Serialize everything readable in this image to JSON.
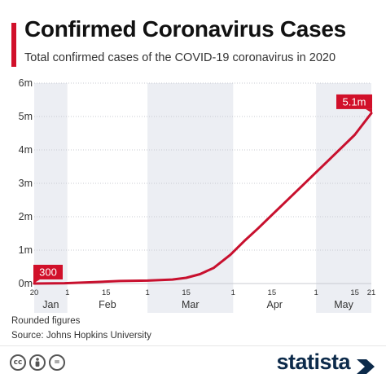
{
  "header": {
    "title": "Confirmed Coronavirus Cases",
    "subtitle": "Total confirmed cases of the COVID-19 coronavirus in 2020"
  },
  "colors": {
    "accent": "#d1102a",
    "line": "#c8102e",
    "band": "#eceef3",
    "text": "#333333",
    "brand": "#0c2a4a"
  },
  "chart_data": {
    "type": "line",
    "title": "Confirmed Coronavirus Cases",
    "subtitle": "Total confirmed cases of the COVID-19 coronavirus in 2020",
    "xlabel": "",
    "ylabel": "",
    "x_range": [
      "2020-01-20",
      "2020-05-21"
    ],
    "ylim": [
      0,
      6000000
    ],
    "y_ticks": [
      {
        "value": 0,
        "label": "0m"
      },
      {
        "value": 1000000,
        "label": "1m"
      },
      {
        "value": 2000000,
        "label": "2m"
      },
      {
        "value": 3000000,
        "label": "3m"
      },
      {
        "value": 4000000,
        "label": "4m"
      },
      {
        "value": 5000000,
        "label": "5m"
      },
      {
        "value": 6000000,
        "label": "6m"
      }
    ],
    "x_ticks": [
      {
        "date": "2020-01-20",
        "label": "20"
      },
      {
        "date": "2020-02-01",
        "label": "1"
      },
      {
        "date": "2020-02-15",
        "label": "15"
      },
      {
        "date": "2020-03-01",
        "label": "1"
      },
      {
        "date": "2020-03-15",
        "label": "15"
      },
      {
        "date": "2020-04-01",
        "label": "1"
      },
      {
        "date": "2020-04-15",
        "label": "15"
      },
      {
        "date": "2020-05-01",
        "label": "1"
      },
      {
        "date": "2020-05-15",
        "label": "15"
      },
      {
        "date": "2020-05-21",
        "label": "21"
      }
    ],
    "months": [
      {
        "label": "Jan",
        "start": "2020-01-20",
        "end": "2020-02-01",
        "shaded": true
      },
      {
        "label": "Feb",
        "start": "2020-02-01",
        "end": "2020-03-01",
        "shaded": false
      },
      {
        "label": "Mar",
        "start": "2020-03-01",
        "end": "2020-04-01",
        "shaded": true
      },
      {
        "label": "Apr",
        "start": "2020-04-01",
        "end": "2020-05-01",
        "shaded": false
      },
      {
        "label": "May",
        "start": "2020-05-01",
        "end": "2020-05-21",
        "shaded": true
      }
    ],
    "grid": true,
    "series": [
      {
        "points": [
          [
            "2020-01-20",
            300
          ],
          [
            "2020-01-31",
            10000
          ],
          [
            "2020-02-10",
            40000
          ],
          [
            "2020-02-20",
            76000
          ],
          [
            "2020-03-01",
            88000
          ],
          [
            "2020-03-10",
            120000
          ],
          [
            "2020-03-15",
            170000
          ],
          [
            "2020-03-20",
            280000
          ],
          [
            "2020-03-25",
            470000
          ],
          [
            "2020-03-31",
            860000
          ],
          [
            "2020-04-05",
            1270000
          ],
          [
            "2020-04-10",
            1650000
          ],
          [
            "2020-04-15",
            2050000
          ],
          [
            "2020-04-20",
            2450000
          ],
          [
            "2020-04-25",
            2850000
          ],
          [
            "2020-04-30",
            3250000
          ],
          [
            "2020-05-05",
            3650000
          ],
          [
            "2020-05-10",
            4050000
          ],
          [
            "2020-05-15",
            4450000
          ],
          [
            "2020-05-21",
            5100000
          ]
        ]
      }
    ],
    "annotations": [
      {
        "date": "2020-01-20",
        "value": 300,
        "label": "300"
      },
      {
        "date": "2020-05-21",
        "value": 5100000,
        "label": "5.1m"
      }
    ]
  },
  "footnotes": {
    "note": "Rounded figures",
    "source": "Source: Johns Hopkins University"
  },
  "footer": {
    "license_icons": [
      "cc",
      "person",
      "="
    ],
    "brand": "statista"
  }
}
